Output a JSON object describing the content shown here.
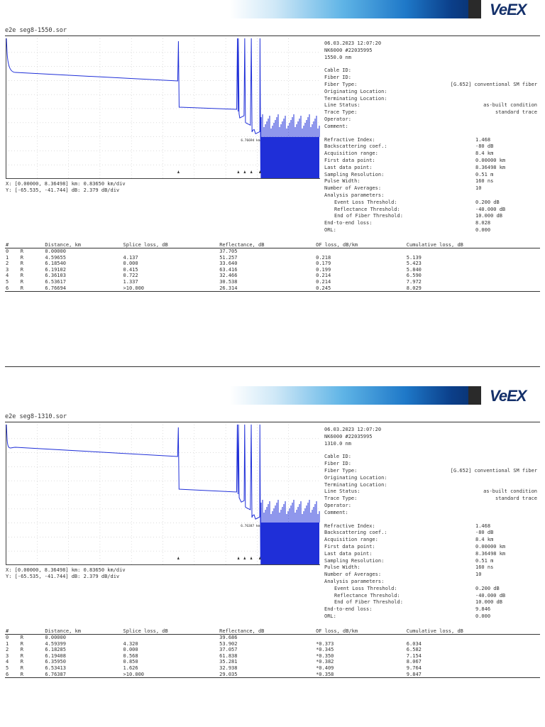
{
  "brand": {
    "logo_text": "VeEX"
  },
  "reports": [
    {
      "filename": "e2e seg8-1550.sor",
      "x_axis_info": "X: [0.00000, 8.36498] km: 0.83650 km/div",
      "y_axis_info": "Y: [-65.535, -41.744] dB: 2.379 dB/div",
      "datetime": "06.03.2023   12:07:20",
      "device": "NK6000 #22035995",
      "wavelength": "1550.0 nm",
      "fields": [
        {
          "label": "Cable ID:",
          "value": ""
        },
        {
          "label": "Fiber ID:",
          "value": ""
        },
        {
          "label": "Fiber Type:",
          "value": "[G.652] conventional SM fiber"
        },
        {
          "label": "Originating Location:",
          "value": ""
        },
        {
          "label": "Terminating Location:",
          "value": ""
        },
        {
          "label": "Line Status:",
          "value": "as-built condition"
        },
        {
          "label": "Trace Type:",
          "value": "standard trace"
        },
        {
          "label": "Operator:",
          "value": ""
        },
        {
          "label": "Comment:",
          "value": ""
        }
      ],
      "params": [
        {
          "label": "Refractive Index:",
          "value": "1.468"
        },
        {
          "label": "Backscattering coef.:",
          "value": "-80 dB"
        },
        {
          "label": "Acquisition range:",
          "value": "8.4 km"
        },
        {
          "label": "First data point:",
          "value": "0.00000 km"
        },
        {
          "label": "Last data point:",
          "value": "8.36498 km"
        },
        {
          "label": "Sampling Resolution:",
          "value": "0.51 m"
        },
        {
          "label": "Pulse Width:",
          "value": "160 ns"
        },
        {
          "label": "Number of Averages:",
          "value": "10"
        },
        {
          "label": "Analysis parameters:",
          "value": ""
        },
        {
          "label": "Event Loss Threshold:",
          "value": "0.200 dB"
        },
        {
          "label": "Reflectance Threshold:",
          "value": "-40.000 dB"
        },
        {
          "label": "End of Fiber Threshold:",
          "value": "10.000 dB"
        },
        {
          "label": "End-to-end loss:",
          "value": "8.028"
        },
        {
          "label": "ORL:",
          "value": "0.000"
        }
      ],
      "eof_label": "6.76694 km",
      "table_headers": [
        "#",
        "",
        "Distance, km",
        "Splice loss, dB",
        "Reflectance, dB",
        "OF loss, dB/km",
        "Cumulative loss, dB"
      ],
      "events": [
        [
          "0",
          "R",
          "0.00000",
          "",
          "37.705",
          "",
          ""
        ],
        [
          "1",
          "R",
          "4.59655",
          "4.137",
          "51.257",
          "0.218",
          "5.139"
        ],
        [
          "2",
          "R",
          "6.18540",
          "0.000",
          "33.640",
          "0.179",
          "5.423"
        ],
        [
          "3",
          "R",
          "6.19102",
          "0.415",
          "63.416",
          "0.199",
          "5.840"
        ],
        [
          "4",
          "R",
          "6.36103",
          "0.722",
          "32.466",
          "0.214",
          "6.590"
        ],
        [
          "5",
          "R",
          "6.53617",
          "1.337",
          "30.538",
          "0.214",
          "7.972"
        ],
        [
          "6",
          "R",
          "6.76694",
          ">10.000",
          "26.314",
          "0.245",
          "8.029"
        ]
      ]
    },
    {
      "filename": "e2e seg8-1310.sor",
      "x_axis_info": "X: [0.00000, 8.36498] km: 0.83650 km/div",
      "y_axis_info": "Y: [-65.535, -41.744] dB: 2.379 dB/div",
      "datetime": "06.03.2023   12:07:20",
      "device": "NK6000 #22035995",
      "wavelength": "1310.0 nm",
      "fields": [
        {
          "label": "Cable ID:",
          "value": ""
        },
        {
          "label": "Fiber ID:",
          "value": ""
        },
        {
          "label": "Fiber Type:",
          "value": "[G.652] conventional SM fiber"
        },
        {
          "label": "Originating Location:",
          "value": ""
        },
        {
          "label": "Terminating Location:",
          "value": ""
        },
        {
          "label": "Line Status:",
          "value": "as-built condition"
        },
        {
          "label": "Trace Type:",
          "value": "standard trace"
        },
        {
          "label": "Operator:",
          "value": ""
        },
        {
          "label": "Comment:",
          "value": ""
        }
      ],
      "params": [
        {
          "label": "Refractive Index:",
          "value": "1.468"
        },
        {
          "label": "Backscattering coef.:",
          "value": "-80 dB"
        },
        {
          "label": "Acquisition range:",
          "value": "8.4 km"
        },
        {
          "label": "First data point:",
          "value": "0.00000 km"
        },
        {
          "label": "Last data point:",
          "value": "8.36498 km"
        },
        {
          "label": "Sampling Resolution:",
          "value": "0.51 m"
        },
        {
          "label": "Pulse Width:",
          "value": "160 ns"
        },
        {
          "label": "Number of Averages:",
          "value": "10"
        },
        {
          "label": "Analysis parameters:",
          "value": ""
        },
        {
          "label": "Event Loss Threshold:",
          "value": "0.200 dB"
        },
        {
          "label": "Reflectance Threshold:",
          "value": "-40.000 dB"
        },
        {
          "label": "End of Fiber Threshold:",
          "value": "10.000 dB"
        },
        {
          "label": "End-to-end loss:",
          "value": "9.846"
        },
        {
          "label": "ORL:",
          "value": "0.000"
        }
      ],
      "eof_label": "6.76387 km",
      "table_headers": [
        "#",
        "",
        "Distance, km",
        "Splice loss, dB",
        "Reflectance, dB",
        "OF loss, dB/km",
        "Cumulative loss, dB"
      ],
      "events": [
        [
          "0",
          "R",
          "0.00000",
          "",
          "39.686",
          "",
          ""
        ],
        [
          "1",
          "R",
          "4.59399",
          "4.320",
          "53.902",
          "*0.373",
          "6.034"
        ],
        [
          "2",
          "R",
          "6.18285",
          "0.000",
          "37.057",
          "*0.345",
          "6.582"
        ],
        [
          "3",
          "R",
          "6.19408",
          "0.568",
          "61.838",
          "*0.350",
          "7.154"
        ],
        [
          "4",
          "R",
          "6.35950",
          "0.850",
          "35.281",
          "*0.382",
          "8.067"
        ],
        [
          "5",
          "R",
          "6.53413",
          "1.626",
          "32.938",
          "*0.409",
          "9.764"
        ],
        [
          "6",
          "R",
          "6.76387",
          ">10.000",
          "29.035",
          "*0.358",
          "9.847"
        ]
      ]
    }
  ],
  "colors": {
    "trace": "#1f2fd8",
    "grid": "#c8c8c8",
    "accent_dark": "#14306a",
    "accent_light": "#3fa0de"
  }
}
